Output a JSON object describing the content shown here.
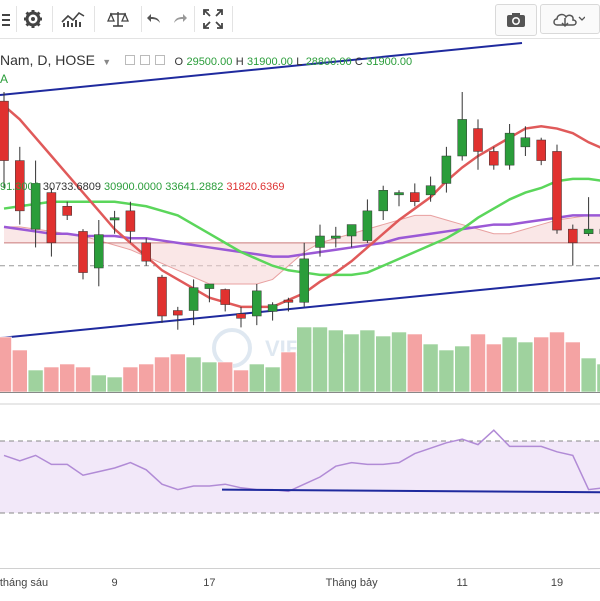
{
  "toolbar": {
    "buttons": [
      "menu-icon",
      "gear-icon",
      "chart-style-icon",
      "compare-icon",
      "undo-icon",
      "redo-icon",
      "fullscreen-icon"
    ],
    "right_buttons": [
      "camera-icon",
      "cloud-icon"
    ]
  },
  "legend": {
    "symbol": "Nam, D, HOSE",
    "o_label": "O",
    "o_value": "29500.00",
    "h_label": "H",
    "h_value": "31900.00",
    "l_label": "L",
    "l_value": "28800.00",
    "c_label": "C",
    "c_value": "31900.00",
    "indicator_tag": "A"
  },
  "ichimoku_values": [
    "91.3000",
    "30733.6809",
    "30900.0000",
    "33641.2882",
    "31820.6369"
  ],
  "colors": {
    "up": "#2a9d3a",
    "down": "#e0312f",
    "vol_up": "#9fd29e",
    "vol_down": "#f4a3a3",
    "ma_red": "#e05a5a",
    "ma_green": "#5bd65b",
    "ma_purple": "#9b59d6",
    "trend": "#1f2a9e",
    "rsi": "#b18bd6"
  },
  "watermark": "VIETSTOCK",
  "chart_data": {
    "type": "candlestick",
    "x_labels": [
      {
        "label": "tháng sáu",
        "index": 0
      },
      {
        "label": "9",
        "index": 7
      },
      {
        "label": "17",
        "index": 13
      },
      {
        "label": "Tháng bảy",
        "index": 22
      },
      {
        "label": "11",
        "index": 29
      },
      {
        "label": "19",
        "index": 35
      }
    ],
    "candles": [
      {
        "o": 33900,
        "h": 34100,
        "l": 32000,
        "c": 32600
      },
      {
        "o": 32600,
        "h": 32900,
        "l": 31200,
        "c": 31500
      },
      {
        "o": 31100,
        "h": 32600,
        "l": 30700,
        "c": 32100
      },
      {
        "o": 31900,
        "h": 32000,
        "l": 30500,
        "c": 30800
      },
      {
        "o": 31600,
        "h": 31700,
        "l": 31300,
        "c": 31400
      },
      {
        "o": 31050,
        "h": 31100,
        "l": 30000,
        "c": 30150
      },
      {
        "o": 30250,
        "h": 31300,
        "l": 29850,
        "c": 30980
      },
      {
        "o": 31300,
        "h": 31500,
        "l": 31000,
        "c": 31350
      },
      {
        "o": 31500,
        "h": 31700,
        "l": 30800,
        "c": 31050
      },
      {
        "o": 30800,
        "h": 30900,
        "l": 30300,
        "c": 30400
      },
      {
        "o": 30050,
        "h": 30100,
        "l": 29050,
        "c": 29200
      },
      {
        "o": 29320,
        "h": 29400,
        "l": 28900,
        "c": 29220
      },
      {
        "o": 29320,
        "h": 30000,
        "l": 29000,
        "c": 29820
      },
      {
        "o": 29800,
        "h": 29900,
        "l": 29500,
        "c": 29900
      },
      {
        "o": 29780,
        "h": 29800,
        "l": 29300,
        "c": 29450
      },
      {
        "o": 29250,
        "h": 29400,
        "l": 28950,
        "c": 29150
      },
      {
        "o": 29200,
        "h": 29900,
        "l": 29000,
        "c": 29750
      },
      {
        "o": 29300,
        "h": 29500,
        "l": 29100,
        "c": 29450
      },
      {
        "o": 29550,
        "h": 29600,
        "l": 29300,
        "c": 29500
      },
      {
        "o": 29500,
        "h": 30800,
        "l": 29400,
        "c": 30450
      },
      {
        "o": 30700,
        "h": 31200,
        "l": 30500,
        "c": 30950
      },
      {
        "o": 30900,
        "h": 31150,
        "l": 30700,
        "c": 30950
      },
      {
        "o": 30950,
        "h": 31150,
        "l": 30700,
        "c": 31200
      },
      {
        "o": 30850,
        "h": 31750,
        "l": 30800,
        "c": 31500
      },
      {
        "o": 31500,
        "h": 32050,
        "l": 31300,
        "c": 31950
      },
      {
        "o": 31850,
        "h": 31950,
        "l": 31600,
        "c": 31900
      },
      {
        "o": 31900,
        "h": 32100,
        "l": 31600,
        "c": 31700
      },
      {
        "o": 31850,
        "h": 32250,
        "l": 31700,
        "c": 32050
      },
      {
        "o": 32100,
        "h": 32900,
        "l": 31900,
        "c": 32700
      },
      {
        "o": 32700,
        "h": 34100,
        "l": 32600,
        "c": 33500
      },
      {
        "o": 33300,
        "h": 33500,
        "l": 32400,
        "c": 32800
      },
      {
        "o": 32800,
        "h": 32900,
        "l": 32400,
        "c": 32500
      },
      {
        "o": 32500,
        "h": 33400,
        "l": 32400,
        "c": 33200
      },
      {
        "o": 32900,
        "h": 33350,
        "l": 32700,
        "c": 33100
      },
      {
        "o": 33050,
        "h": 33100,
        "l": 32500,
        "c": 32600
      },
      {
        "o": 32800,
        "h": 32950,
        "l": 31000,
        "c": 31080
      },
      {
        "o": 31100,
        "h": 31200,
        "l": 30300,
        "c": 30800
      },
      {
        "o": 31000,
        "h": 31800,
        "l": 30950,
        "c": 31100
      },
      {
        "o": 31000,
        "h": 31300,
        "l": 30800,
        "c": 31100
      }
    ],
    "ma_red": [
      33800,
      33500,
      33100,
      32700,
      32300,
      31900,
      31500,
      31100,
      30800,
      30500,
      30200,
      30000,
      29800,
      29600,
      29500,
      29400,
      29400,
      29400,
      29550,
      29700,
      29950,
      30150,
      30400,
      30700,
      31000,
      31300,
      31550,
      31800,
      32150,
      32450,
      32700,
      32900,
      33100,
      33300,
      33350,
      33300,
      33200,
      33000,
      32850
    ],
    "ma_green": [
      31550,
      31600,
      31650,
      31700,
      31700,
      31700,
      31700,
      31700,
      31650,
      31600,
      31500,
      31400,
      31200,
      31000,
      30800,
      30600,
      30450,
      30300,
      30200,
      30150,
      30100,
      30100,
      30100,
      30150,
      30300,
      30450,
      30600,
      30750,
      30900,
      31100,
      31350,
      31550,
      31750,
      31900,
      32000,
      32150,
      32200,
      32200,
      32150
    ],
    "ma_purple": [
      31150,
      31100,
      31050,
      31000,
      31000,
      30950,
      30950,
      30950,
      30900,
      30900,
      30850,
      30800,
      30750,
      30700,
      30650,
      30600,
      30550,
      30500,
      30500,
      30550,
      30600,
      30650,
      30700,
      30750,
      30800,
      30900,
      30950,
      31000,
      31050,
      31100,
      31150,
      31200,
      31200,
      31250,
      31300,
      31350,
      31400,
      31400,
      31400
    ],
    "cloud_upper": [
      31150,
      31150,
      31100,
      31050,
      31000,
      30950,
      30850,
      30750,
      30650,
      30500,
      30350,
      30200,
      30050,
      29900,
      29900,
      29900,
      29900,
      30000,
      30300,
      30600,
      30800,
      30900,
      31000,
      31100,
      31200,
      31300,
      31400,
      31400,
      31300,
      31200,
      31100,
      31000,
      31000,
      31100,
      31200,
      31300,
      31350,
      31400,
      31400
    ],
    "cloud_lower": [
      30800,
      30800,
      30800,
      30800,
      30800,
      30800,
      30800,
      30800,
      30800,
      30800,
      30800,
      30800,
      30800,
      30800,
      30800,
      30800,
      30800,
      30800,
      30800,
      30800,
      30800,
      30800,
      30800,
      30800,
      30800,
      30800,
      30800,
      30800,
      30800,
      30800,
      30800,
      30800,
      30800,
      30800,
      30800,
      30800,
      30800,
      30800,
      30800
    ],
    "volume": [
      55,
      42,
      22,
      25,
      28,
      25,
      17,
      15,
      25,
      28,
      35,
      38,
      35,
      30,
      30,
      22,
      28,
      25,
      40,
      65,
      65,
      62,
      58,
      62,
      56,
      60,
      58,
      48,
      42,
      46,
      58,
      48,
      55,
      50,
      55,
      60,
      50,
      34,
      28
    ],
    "rsi": [
      62,
      59,
      62,
      57,
      57,
      51,
      53,
      55,
      58,
      54,
      46,
      43,
      45,
      45,
      46,
      44,
      43,
      43,
      42,
      46,
      50,
      56,
      58,
      57,
      57,
      58,
      63,
      66,
      69,
      71,
      68,
      76,
      67,
      67,
      67,
      64,
      62,
      43,
      44
    ],
    "y_range": [
      28500,
      34800
    ]
  }
}
